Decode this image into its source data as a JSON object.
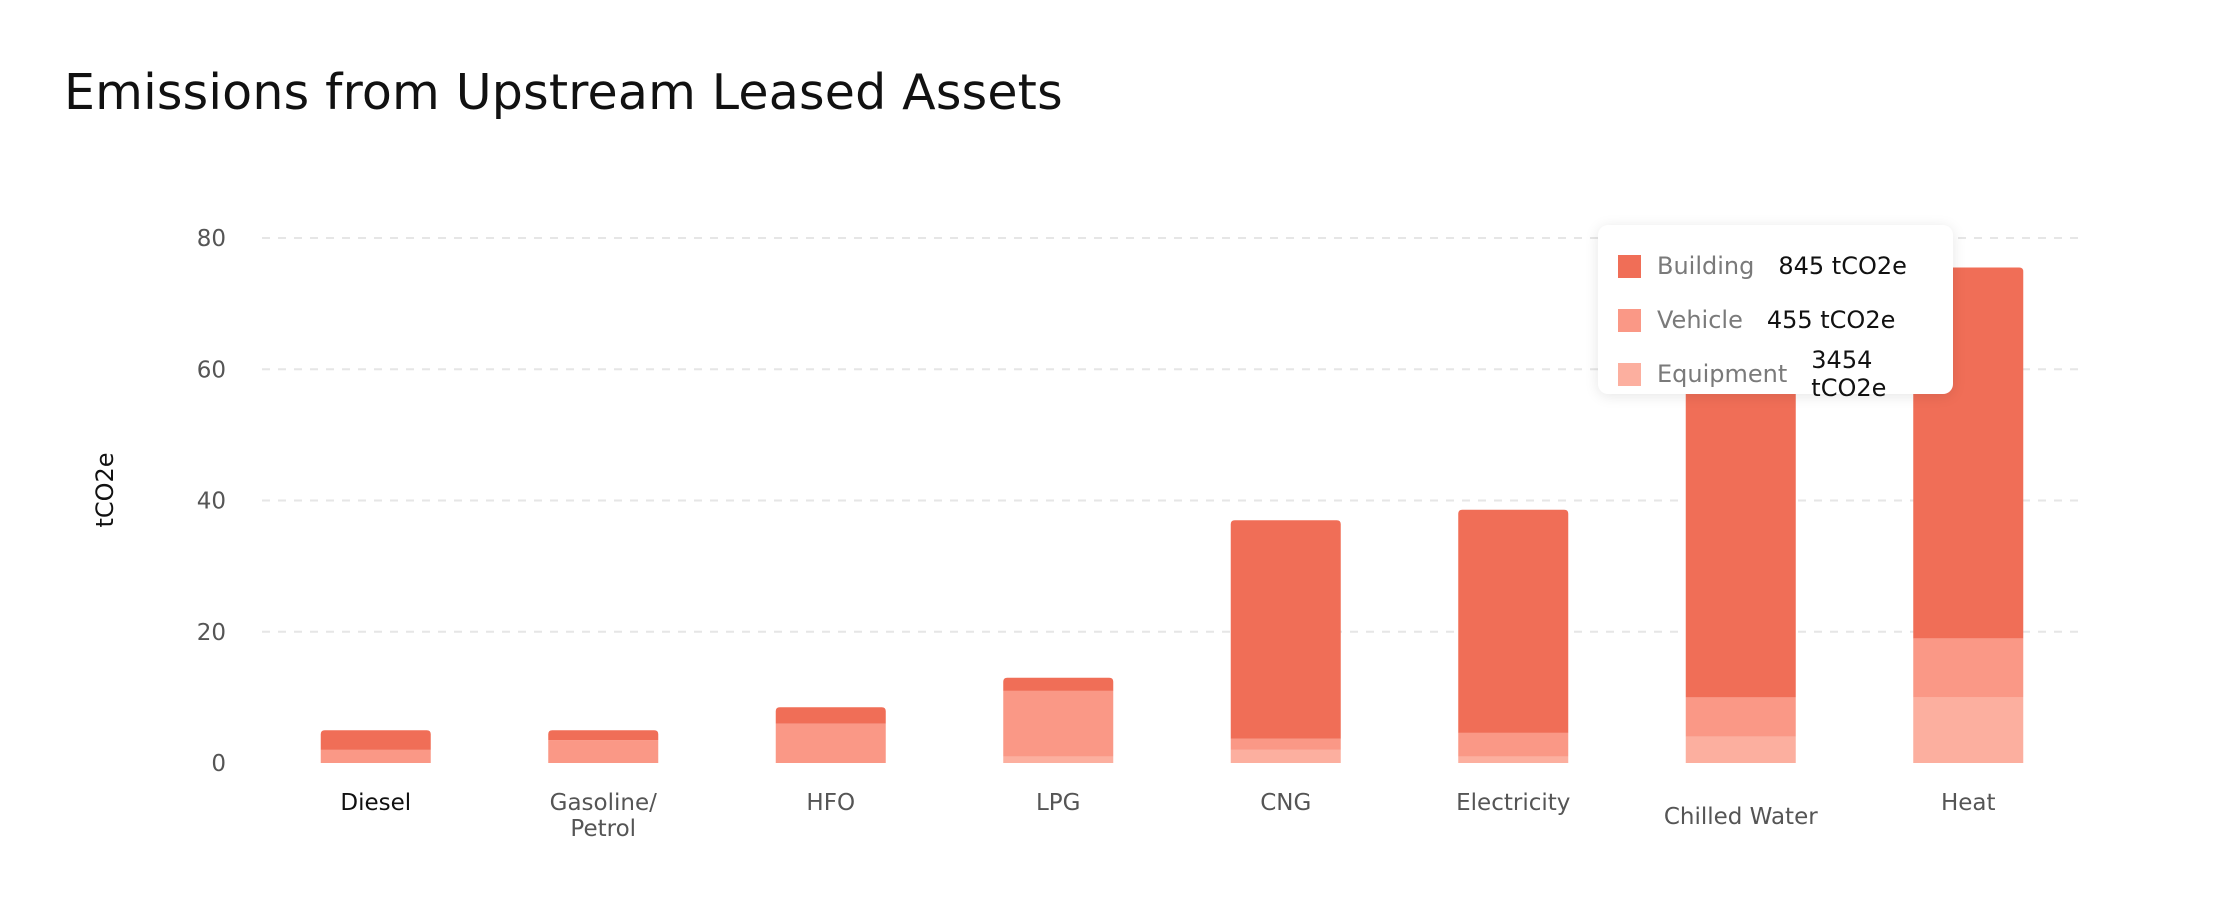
{
  "page": {
    "title": "Emissions from Upstream Leased Assets"
  },
  "colors": {
    "building": "#f06e57",
    "vehicle": "#fa9886",
    "equipment": "#fcaf9f",
    "gridline": "#e6e6e6",
    "axis_text": "#555555"
  },
  "tooltip": {
    "rows": [
      {
        "label": "Building",
        "value": "845 tCO2e",
        "color": "#f06e57"
      },
      {
        "label": "Vehicle",
        "value": "455 tCO2e",
        "color": "#fa9886"
      },
      {
        "label": "Equipment",
        "value": "3454 tCO2e",
        "color": "#fcaf9f"
      }
    ]
  },
  "chart_data": {
    "type": "bar",
    "stacked": true,
    "title": "Emissions from Upstream Leased Assets",
    "xlabel": "",
    "ylabel": "tCO2e",
    "ylim": [
      0,
      80
    ],
    "yticks": [
      0,
      20,
      40,
      60,
      80
    ],
    "grid": true,
    "categories": [
      "Diesel",
      "Gasoline/ Petrol",
      "HFO",
      "LPG",
      "CNG",
      "Electricity",
      "Chilled Water",
      "Heat"
    ],
    "series": [
      {
        "name": "Equipment",
        "color": "#fcaf9f",
        "values": [
          0,
          0,
          0,
          1,
          2,
          1,
          4,
          10
        ]
      },
      {
        "name": "Vehicle",
        "color": "#fa9886",
        "values": [
          2,
          3.5,
          6,
          10,
          1.7,
          3.6,
          6,
          9
        ]
      },
      {
        "name": "Building",
        "color": "#f06e57",
        "values": [
          3,
          1.5,
          2.5,
          2,
          33.3,
          34,
          65,
          56.5
        ]
      }
    ]
  }
}
